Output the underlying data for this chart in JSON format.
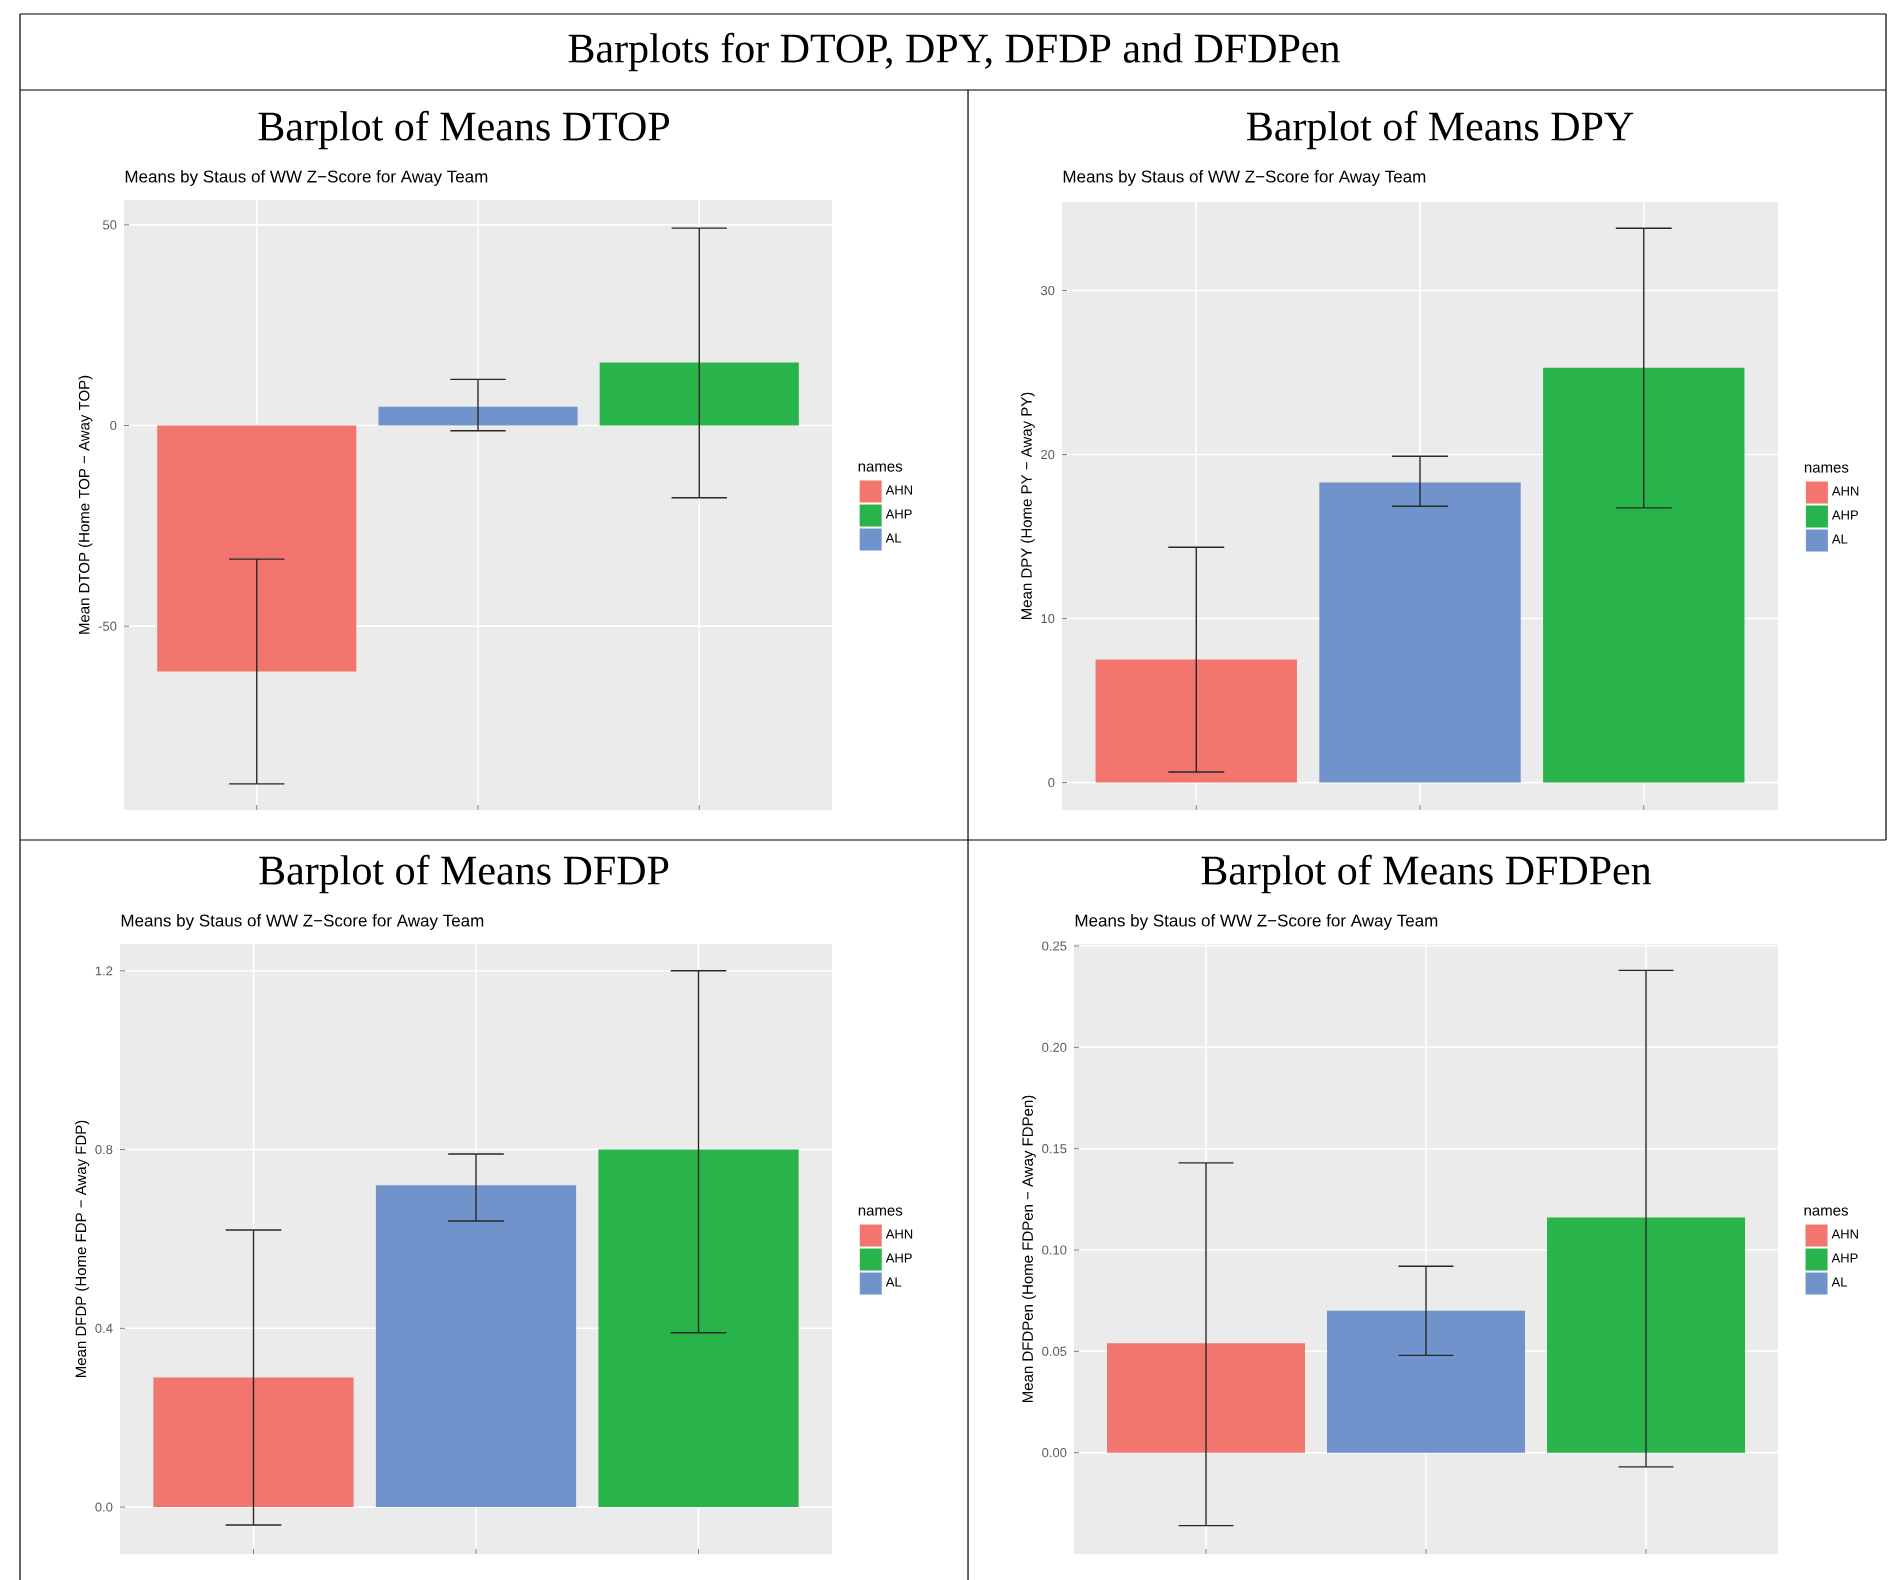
{
  "chart_data": [
    {
      "type": "bar",
      "title": "Barplot of Means DTOP",
      "subtitle": "Means by Staus of WW Z−Score for Away Team",
      "ylabel": "Mean DTOP (Home TOP − Away TOP)",
      "legend_title": "names",
      "annotations": [
        "Barplots for DTOP, DPY, DFDP and DFDPen"
      ],
      "categories": [
        null,
        null,
        null
      ],
      "series": [
        {
          "name": "AHN",
          "color": "#f2766e",
          "values": [
            -61.3,
            null,
            null
          ],
          "errors": [
            [
              -89.3,
              -33.3
            ],
            null,
            null
          ]
        },
        {
          "name": "AHP",
          "color": "#28b44b",
          "values": [
            null,
            null,
            15.7
          ],
          "errors": [
            null,
            null,
            [
              -18.0,
              49.2
            ]
          ]
        },
        {
          "name": "AL",
          "color": "#7093cb",
          "values": [
            null,
            4.7,
            null
          ],
          "errors": [
            null,
            [
              -1.3,
              11.5
            ],
            null
          ]
        }
      ],
      "ylim": [
        -95.8,
        56.2
      ],
      "yticks": [
        -50,
        0,
        50
      ],
      "grid": true,
      "legend": "right",
      "tick_labels": "y"
    },
    {
      "type": "bar",
      "title": "Barplot of Means DPY",
      "subtitle": "Means by Staus of WW Z−Score for Away Team",
      "ylabel": "Mean DPY (Home PY − Away PY)",
      "legend_title": "names",
      "categories": [
        null,
        null,
        null
      ],
      "series": [
        {
          "name": "AHN",
          "color": "#f2766e",
          "values": [
            7.5,
            null,
            null
          ],
          "errors": [
            [
              0.65,
              14.35
            ],
            null,
            null
          ]
        },
        {
          "name": "AHP",
          "color": "#28b44b",
          "values": [
            null,
            null,
            25.3
          ],
          "errors": [
            null,
            null,
            [
              16.75,
              33.8
            ]
          ]
        },
        {
          "name": "AL",
          "color": "#7093cb",
          "values": [
            null,
            18.3,
            null
          ],
          "errors": [
            null,
            [
              16.85,
              19.9
            ],
            null
          ]
        }
      ],
      "ylim": [
        -1.67,
        35.4
      ],
      "yticks": [
        0,
        10,
        20,
        30
      ],
      "grid": true,
      "legend": "right",
      "tick_labels": "y"
    },
    {
      "type": "bar",
      "title": "Barplot of Means DFDP",
      "subtitle": "Means by Staus of WW Z−Score for Away Team",
      "ylabel": "Mean DFDP (Home FDP − Away FDP)",
      "legend_title": "names",
      "categories": [
        null,
        null,
        null
      ],
      "series": [
        {
          "name": "AHN",
          "color": "#f2766e",
          "values": [
            0.29,
            null,
            null
          ],
          "errors": [
            [
              -0.04,
              0.62
            ],
            null,
            null
          ]
        },
        {
          "name": "AHP",
          "color": "#28b44b",
          "values": [
            null,
            null,
            0.8
          ],
          "errors": [
            null,
            null,
            [
              0.39,
              1.2
            ]
          ]
        },
        {
          "name": "AL",
          "color": "#7093cb",
          "values": [
            null,
            0.72,
            null
          ],
          "errors": [
            null,
            [
              0.64,
              0.79
            ],
            null
          ]
        }
      ],
      "ylim": [
        -0.105,
        1.26
      ],
      "yticks": [
        {
          "value": 0,
          "label": "0.0"
        },
        0.4,
        0.8,
        1.2
      ],
      "grid": true,
      "legend": "right",
      "tick_labels": "y"
    },
    {
      "type": "bar",
      "title": "Barplot of Means DFDPen",
      "subtitle": "Means by Staus of WW Z−Score for Away Team",
      "ylabel": "Mean DFDPen (Home FDPen − Away FDPen)",
      "legend_title": "names",
      "categories": [
        null,
        null,
        null
      ],
      "series": [
        {
          "name": "AHN",
          "color": "#f2766e",
          "values": [
            0.054,
            null,
            null
          ],
          "errors": [
            [
              -0.036,
              0.143
            ],
            null,
            null
          ]
        },
        {
          "name": "AHP",
          "color": "#28b44b",
          "values": [
            null,
            null,
            0.116
          ],
          "errors": [
            null,
            null,
            [
              -0.007,
              0.238
            ]
          ]
        },
        {
          "name": "AL",
          "color": "#7093cb",
          "values": [
            null,
            0.07,
            null
          ],
          "errors": [
            null,
            [
              0.048,
              0.092
            ],
            null
          ]
        }
      ],
      "ylim": [
        -0.05,
        0.251
      ],
      "yticks": [
        {
          "value": 0,
          "label": "0.00"
        },
        {
          "value": 0.05,
          "label": "0.05"
        },
        {
          "value": 0.1,
          "label": "0.10"
        },
        {
          "value": 0.15,
          "label": "0.15"
        },
        {
          "value": 0.2,
          "label": "0.20"
        },
        {
          "value": 0.25,
          "label": "0.25"
        }
      ],
      "grid": true,
      "legend": "right",
      "tick_labels": "y"
    }
  ]
}
